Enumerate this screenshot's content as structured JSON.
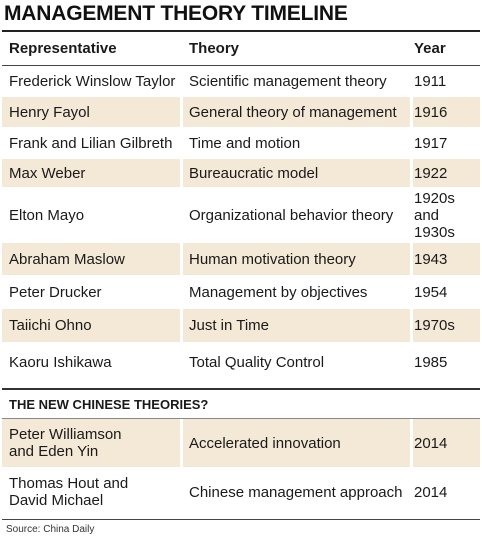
{
  "title": "MANAGEMENT THEORY TIMELINE",
  "headers": {
    "representative": "Representative",
    "theory": "Theory",
    "year": "Year"
  },
  "rows": [
    {
      "rep": "Frederick Winslow Taylor",
      "theory": "Scientific management theory",
      "year": "1911"
    },
    {
      "rep": "Henry Fayol",
      "theory": "General theory of management",
      "year": "1916"
    },
    {
      "rep": "Frank and Lilian Gilbreth",
      "theory": "Time and motion",
      "year": "1917"
    },
    {
      "rep": "Max Weber",
      "theory": "Bureaucratic model",
      "year": "1922"
    },
    {
      "rep": "Elton Mayo",
      "theory": "Organizational behavior theory",
      "year": "1920s and 1930s"
    },
    {
      "rep": "Abraham Maslow",
      "theory": "Human motivation theory",
      "year": "1943"
    },
    {
      "rep": "Peter Drucker",
      "theory": "Management by objectives",
      "year": "1954"
    },
    {
      "rep": "Taiichi Ohno",
      "theory": "Just in Time",
      "year": "1970s"
    },
    {
      "rep": "Kaoru Ishikawa",
      "theory": "Total Quality Control",
      "year": "1985"
    }
  ],
  "section_title": "THE NEW CHINESE THEORIES?",
  "new_rows": [
    {
      "rep": "Peter Williamson and Eden Yin",
      "theory": "Accelerated innovation",
      "year": "2014"
    },
    {
      "rep": "Thomas Hout and David Michael",
      "theory": "Chinese management approach",
      "year": "2014"
    }
  ],
  "source": "Source: China Daily",
  "colors": {
    "row_shade": "#f4e8d6",
    "text": "#1a1a1a"
  }
}
